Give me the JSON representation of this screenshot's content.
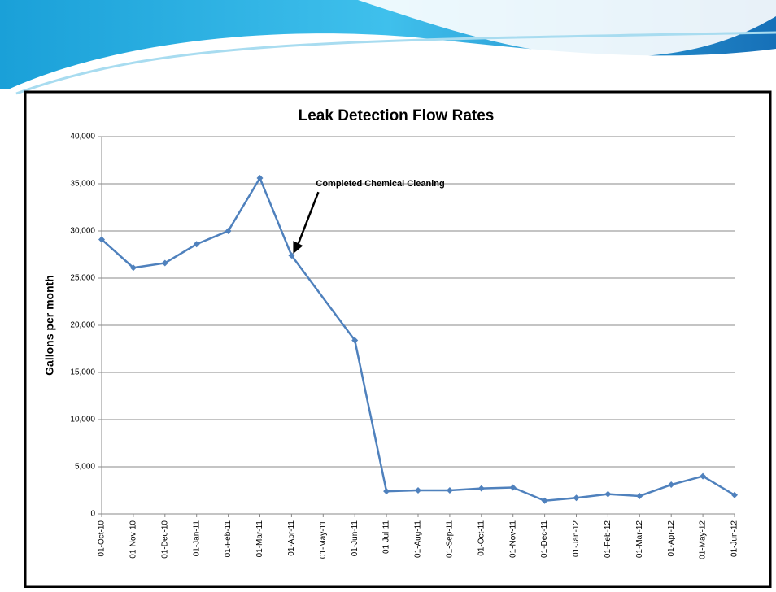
{
  "chart_data": {
    "type": "line",
    "title": "Leak Detection Flow Rates",
    "y_label": "Gallons per month",
    "categories": [
      "01-Oct-10",
      "01-Nov-10",
      "01-Dec-10",
      "01-Jan-11",
      "01-Feb-11",
      "01-Mar-11",
      "01-Apr-11",
      "01-May-11",
      "01-Jun-11",
      "01-Jul-11",
      "01-Aug-11",
      "01-Sep-11",
      "01-Oct-11",
      "01-Nov-11",
      "01-Dec-11",
      "01-Jan-12",
      "01-Feb-12",
      "01-Mar-12",
      "01-Apr-12",
      "01-May-12",
      "01-Jun-12"
    ],
    "series": [
      {
        "color": "#4f81bd",
        "x": [
          "01-Oct-10",
          "01-Nov-10",
          "01-Dec-10",
          "01-Jan-11",
          "01-Feb-11",
          "01-Mar-11",
          "01-Apr-11",
          "01-Jun-11",
          "01-Jul-11",
          "01-Aug-11",
          "01-Sep-11",
          "01-Oct-11",
          "01-Nov-11",
          "01-Dec-11",
          "01-Jan-12",
          "01-Feb-12",
          "01-Mar-12",
          "01-Apr-12",
          "01-May-12",
          "01-Jun-12"
        ],
        "values": [
          29100,
          26100,
          26600,
          28600,
          30000,
          35600,
          27400,
          18400,
          2400,
          2500,
          2500,
          2700,
          2800,
          1400,
          1700,
          2100,
          1900,
          3100,
          4000,
          2000
        ]
      }
    ],
    "ylim": [
      0,
      40000
    ],
    "yticks": [
      0,
      {
        "value": 5000,
        "label": "5,000"
      },
      {
        "value": 10000,
        "label": "10,000"
      },
      {
        "value": 15000,
        "label": "15,000"
      },
      {
        "value": 20000,
        "label": "20,000"
      },
      {
        "value": 25000,
        "label": "25,000"
      },
      {
        "value": 30000,
        "label": "30,000"
      },
      {
        "value": 35000,
        "label": "35,000"
      },
      {
        "value": 40000,
        "label": "40,000"
      }
    ],
    "grid": true,
    "annotation": {
      "text": "Completed Chemical Cleaning",
      "target": "01-Apr-11"
    }
  }
}
